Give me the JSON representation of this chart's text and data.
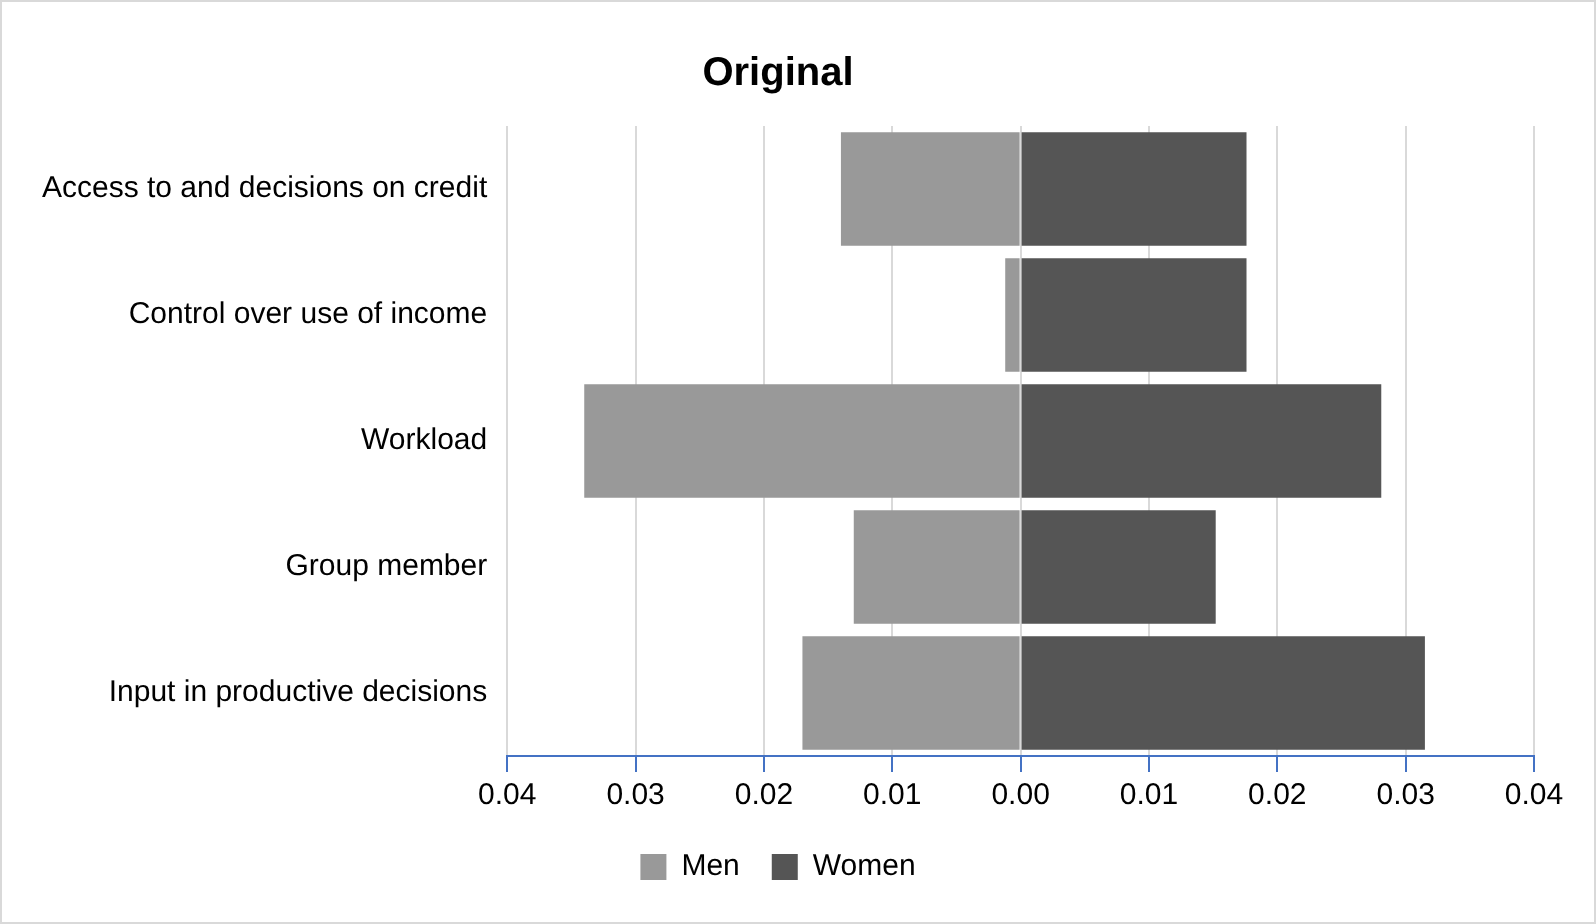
{
  "chart_data": {
    "type": "bar",
    "orientation": "horizontal",
    "stacked": true,
    "title": "Original",
    "categories": [
      "Access to and decisions on credit",
      "Control over use of income",
      "Workload",
      "Group member",
      "Input in productive decisions"
    ],
    "series": [
      {
        "name": "Men",
        "color": "#999999",
        "values": [
          -0.014,
          -0.0012,
          -0.034,
          -0.013,
          -0.017
        ]
      },
      {
        "name": "Women",
        "color": "#555555",
        "values": [
          0.0176,
          0.0176,
          0.0281,
          0.0152,
          0.0315
        ]
      }
    ],
    "xlim": [
      -0.04,
      0.04
    ],
    "xticks": [
      {
        "value": -0.04,
        "label": "0.04"
      },
      {
        "value": -0.03,
        "label": "0.03"
      },
      {
        "value": -0.02,
        "label": "0.02"
      },
      {
        "value": -0.01,
        "label": "0.01"
      },
      {
        "value": 0,
        "label": "0.00"
      },
      {
        "value": 0.01,
        "label": "0.01"
      },
      {
        "value": 0.02,
        "label": "0.02"
      },
      {
        "value": 0.03,
        "label": "0.03"
      },
      {
        "value": 0.04,
        "label": "0.04"
      }
    ],
    "grid": "x",
    "legend": "bottom"
  }
}
